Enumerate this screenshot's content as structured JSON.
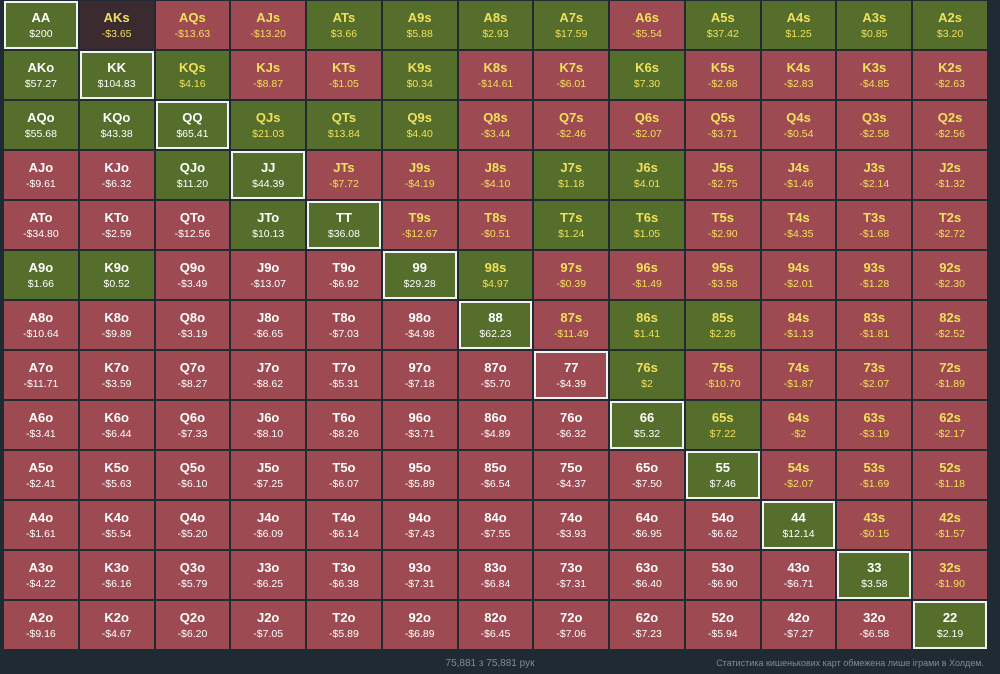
{
  "matrix": {
    "rows": [
      [
        [
          "AA",
          "$200",
          "pos"
        ],
        [
          "AKs",
          "-$3.65",
          "darkneg"
        ],
        [
          "AQs",
          "-$13.63",
          "neg"
        ],
        [
          "AJs",
          "-$13.20",
          "neg"
        ],
        [
          "ATs",
          "$3.66",
          "pos"
        ],
        [
          "A9s",
          "$5.88",
          "pos"
        ],
        [
          "A8s",
          "$2.93",
          "pos"
        ],
        [
          "A7s",
          "$17.59",
          "pos"
        ],
        [
          "A6s",
          "-$5.54",
          "neg"
        ],
        [
          "A5s",
          "$37.42",
          "pos"
        ],
        [
          "A4s",
          "$1.25",
          "pos"
        ],
        [
          "A3s",
          "$0.85",
          "pos"
        ],
        [
          "A2s",
          "$3.20",
          "pos"
        ]
      ],
      [
        [
          "AKo",
          "$57.27",
          "pos"
        ],
        [
          "KK",
          "$104.83",
          "pos"
        ],
        [
          "KQs",
          "$4.16",
          "pos"
        ],
        [
          "KJs",
          "-$8.87",
          "neg"
        ],
        [
          "KTs",
          "-$1.05",
          "neg"
        ],
        [
          "K9s",
          "$0.34",
          "pos"
        ],
        [
          "K8s",
          "-$14.61",
          "neg"
        ],
        [
          "K7s",
          "-$6.01",
          "neg"
        ],
        [
          "K6s",
          "$7.30",
          "pos"
        ],
        [
          "K5s",
          "-$2.68",
          "neg"
        ],
        [
          "K4s",
          "-$2.83",
          "neg"
        ],
        [
          "K3s",
          "-$4.85",
          "neg"
        ],
        [
          "K2s",
          "-$2.63",
          "neg"
        ]
      ],
      [
        [
          "AQo",
          "$55.68",
          "pos"
        ],
        [
          "KQo",
          "$43.38",
          "pos"
        ],
        [
          "QQ",
          "$65.41",
          "pos"
        ],
        [
          "QJs",
          "$21.03",
          "pos"
        ],
        [
          "QTs",
          "$13.84",
          "pos"
        ],
        [
          "Q9s",
          "$4.40",
          "pos"
        ],
        [
          "Q8s",
          "-$3.44",
          "neg"
        ],
        [
          "Q7s",
          "-$2.46",
          "neg"
        ],
        [
          "Q6s",
          "-$2.07",
          "neg"
        ],
        [
          "Q5s",
          "-$3.71",
          "neg"
        ],
        [
          "Q4s",
          "-$0.54",
          "neg"
        ],
        [
          "Q3s",
          "-$2.58",
          "neg"
        ],
        [
          "Q2s",
          "-$2.56",
          "neg"
        ]
      ],
      [
        [
          "AJo",
          "-$9.61",
          "neg"
        ],
        [
          "KJo",
          "-$6.32",
          "neg"
        ],
        [
          "QJo",
          "$11.20",
          "pos"
        ],
        [
          "JJ",
          "$44.39",
          "pos"
        ],
        [
          "JTs",
          "-$7.72",
          "neg"
        ],
        [
          "J9s",
          "-$4.19",
          "neg"
        ],
        [
          "J8s",
          "-$4.10",
          "neg"
        ],
        [
          "J7s",
          "$1.18",
          "pos"
        ],
        [
          "J6s",
          "$4.01",
          "pos"
        ],
        [
          "J5s",
          "-$2.75",
          "neg"
        ],
        [
          "J4s",
          "-$1.46",
          "neg"
        ],
        [
          "J3s",
          "-$2.14",
          "neg"
        ],
        [
          "J2s",
          "-$1.32",
          "neg"
        ]
      ],
      [
        [
          "ATo",
          "-$34.80",
          "neg"
        ],
        [
          "KTo",
          "-$2.59",
          "neg"
        ],
        [
          "QTo",
          "-$12.56",
          "neg"
        ],
        [
          "JTo",
          "$10.13",
          "pos"
        ],
        [
          "TT",
          "$36.08",
          "pos"
        ],
        [
          "T9s",
          "-$12.67",
          "neg"
        ],
        [
          "T8s",
          "-$0.51",
          "neg"
        ],
        [
          "T7s",
          "$1.24",
          "pos"
        ],
        [
          "T6s",
          "$1.05",
          "pos"
        ],
        [
          "T5s",
          "-$2.90",
          "neg"
        ],
        [
          "T4s",
          "-$4.35",
          "neg"
        ],
        [
          "T3s",
          "-$1.68",
          "neg"
        ],
        [
          "T2s",
          "-$2.72",
          "neg"
        ]
      ],
      [
        [
          "A9o",
          "$1.66",
          "pos"
        ],
        [
          "K9o",
          "$0.52",
          "pos"
        ],
        [
          "Q9o",
          "-$3.49",
          "neg"
        ],
        [
          "J9o",
          "-$13.07",
          "neg"
        ],
        [
          "T9o",
          "-$6.92",
          "neg"
        ],
        [
          "99",
          "$29.28",
          "pos"
        ],
        [
          "98s",
          "$4.97",
          "pos"
        ],
        [
          "97s",
          "-$0.39",
          "neg"
        ],
        [
          "96s",
          "-$1.49",
          "neg"
        ],
        [
          "95s",
          "-$3.58",
          "neg"
        ],
        [
          "94s",
          "-$2.01",
          "neg"
        ],
        [
          "93s",
          "-$1.28",
          "neg"
        ],
        [
          "92s",
          "-$2.30",
          "neg"
        ]
      ],
      [
        [
          "A8o",
          "-$10.64",
          "neg"
        ],
        [
          "K8o",
          "-$9.89",
          "neg"
        ],
        [
          "Q8o",
          "-$3.19",
          "neg"
        ],
        [
          "J8o",
          "-$6.65",
          "neg"
        ],
        [
          "T8o",
          "-$7.03",
          "neg"
        ],
        [
          "98o",
          "-$4.98",
          "neg"
        ],
        [
          "88",
          "$62.23",
          "pos"
        ],
        [
          "87s",
          "-$11.49",
          "neg"
        ],
        [
          "86s",
          "$1.41",
          "pos"
        ],
        [
          "85s",
          "$2.26",
          "pos"
        ],
        [
          "84s",
          "-$1.13",
          "neg"
        ],
        [
          "83s",
          "-$1.81",
          "neg"
        ],
        [
          "82s",
          "-$2.52",
          "neg"
        ]
      ],
      [
        [
          "A7o",
          "-$11.71",
          "neg"
        ],
        [
          "K7o",
          "-$3.59",
          "neg"
        ],
        [
          "Q7o",
          "-$8.27",
          "neg"
        ],
        [
          "J7o",
          "-$8.62",
          "neg"
        ],
        [
          "T7o",
          "-$5.31",
          "neg"
        ],
        [
          "97o",
          "-$7.18",
          "neg"
        ],
        [
          "87o",
          "-$5.70",
          "neg"
        ],
        [
          "77",
          "-$4.39",
          "neg"
        ],
        [
          "76s",
          "$2",
          "pos"
        ],
        [
          "75s",
          "-$10.70",
          "neg"
        ],
        [
          "74s",
          "-$1.87",
          "neg"
        ],
        [
          "73s",
          "-$2.07",
          "neg"
        ],
        [
          "72s",
          "-$1.89",
          "neg"
        ]
      ],
      [
        [
          "A6o",
          "-$3.41",
          "neg"
        ],
        [
          "K6o",
          "-$6.44",
          "neg"
        ],
        [
          "Q6o",
          "-$7.33",
          "neg"
        ],
        [
          "J6o",
          "-$8.10",
          "neg"
        ],
        [
          "T6o",
          "-$8.26",
          "neg"
        ],
        [
          "96o",
          "-$3.71",
          "neg"
        ],
        [
          "86o",
          "-$4.89",
          "neg"
        ],
        [
          "76o",
          "-$6.32",
          "neg"
        ],
        [
          "66",
          "$5.32",
          "pos"
        ],
        [
          "65s",
          "$7.22",
          "pos"
        ],
        [
          "64s",
          "-$2",
          "neg"
        ],
        [
          "63s",
          "-$3.19",
          "neg"
        ],
        [
          "62s",
          "-$2.17",
          "neg"
        ]
      ],
      [
        [
          "A5o",
          "-$2.41",
          "neg"
        ],
        [
          "K5o",
          "-$5.63",
          "neg"
        ],
        [
          "Q5o",
          "-$6.10",
          "neg"
        ],
        [
          "J5o",
          "-$7.25",
          "neg"
        ],
        [
          "T5o",
          "-$6.07",
          "neg"
        ],
        [
          "95o",
          "-$5.89",
          "neg"
        ],
        [
          "85o",
          "-$6.54",
          "neg"
        ],
        [
          "75o",
          "-$4.37",
          "neg"
        ],
        [
          "65o",
          "-$7.50",
          "neg"
        ],
        [
          "55",
          "$7.46",
          "pos"
        ],
        [
          "54s",
          "-$2.07",
          "neg"
        ],
        [
          "53s",
          "-$1.69",
          "neg"
        ],
        [
          "52s",
          "-$1.18",
          "neg"
        ]
      ],
      [
        [
          "A4o",
          "-$1.61",
          "neg"
        ],
        [
          "K4o",
          "-$5.54",
          "neg"
        ],
        [
          "Q4o",
          "-$5.20",
          "neg"
        ],
        [
          "J4o",
          "-$6.09",
          "neg"
        ],
        [
          "T4o",
          "-$6.14",
          "neg"
        ],
        [
          "94o",
          "-$7.43",
          "neg"
        ],
        [
          "84o",
          "-$7.55",
          "neg"
        ],
        [
          "74o",
          "-$3.93",
          "neg"
        ],
        [
          "64o",
          "-$6.95",
          "neg"
        ],
        [
          "54o",
          "-$6.62",
          "neg"
        ],
        [
          "44",
          "$12.14",
          "pos"
        ],
        [
          "43s",
          "-$0.15",
          "neg"
        ],
        [
          "42s",
          "-$1.57",
          "neg"
        ]
      ],
      [
        [
          "A3o",
          "-$4.22",
          "neg"
        ],
        [
          "K3o",
          "-$6.16",
          "neg"
        ],
        [
          "Q3o",
          "-$5.79",
          "neg"
        ],
        [
          "J3o",
          "-$6.25",
          "neg"
        ],
        [
          "T3o",
          "-$6.38",
          "neg"
        ],
        [
          "93o",
          "-$7.31",
          "neg"
        ],
        [
          "83o",
          "-$6.84",
          "neg"
        ],
        [
          "73o",
          "-$7.31",
          "neg"
        ],
        [
          "63o",
          "-$6.40",
          "neg"
        ],
        [
          "53o",
          "-$6.90",
          "neg"
        ],
        [
          "43o",
          "-$6.71",
          "neg"
        ],
        [
          "33",
          "$3.58",
          "pos"
        ],
        [
          "32s",
          "-$1.90",
          "neg"
        ]
      ],
      [
        [
          "A2o",
          "-$9.16",
          "neg"
        ],
        [
          "K2o",
          "-$4.67",
          "neg"
        ],
        [
          "Q2o",
          "-$6.20",
          "neg"
        ],
        [
          "J2o",
          "-$7.05",
          "neg"
        ],
        [
          "T2o",
          "-$5.89",
          "neg"
        ],
        [
          "92o",
          "-$6.89",
          "neg"
        ],
        [
          "82o",
          "-$6.45",
          "neg"
        ],
        [
          "72o",
          "-$7.06",
          "neg"
        ],
        [
          "62o",
          "-$7.23",
          "neg"
        ],
        [
          "52o",
          "-$5.94",
          "neg"
        ],
        [
          "42o",
          "-$7.27",
          "neg"
        ],
        [
          "32o",
          "-$6.58",
          "neg"
        ],
        [
          "22",
          "$2.19",
          "pos"
        ]
      ]
    ]
  },
  "footer": {
    "count": "75,881 з 75,881 рук",
    "note": "Статистика кишенькових карт обмежена лише іграми в Холдем."
  },
  "colors": {
    "background": "#202a33",
    "positive": "#556e2c",
    "negative": "#9e4a52",
    "selected_negative": "#3c2a31",
    "suited_text": "#f1e05a",
    "offsuit_text": "#ffffff"
  }
}
